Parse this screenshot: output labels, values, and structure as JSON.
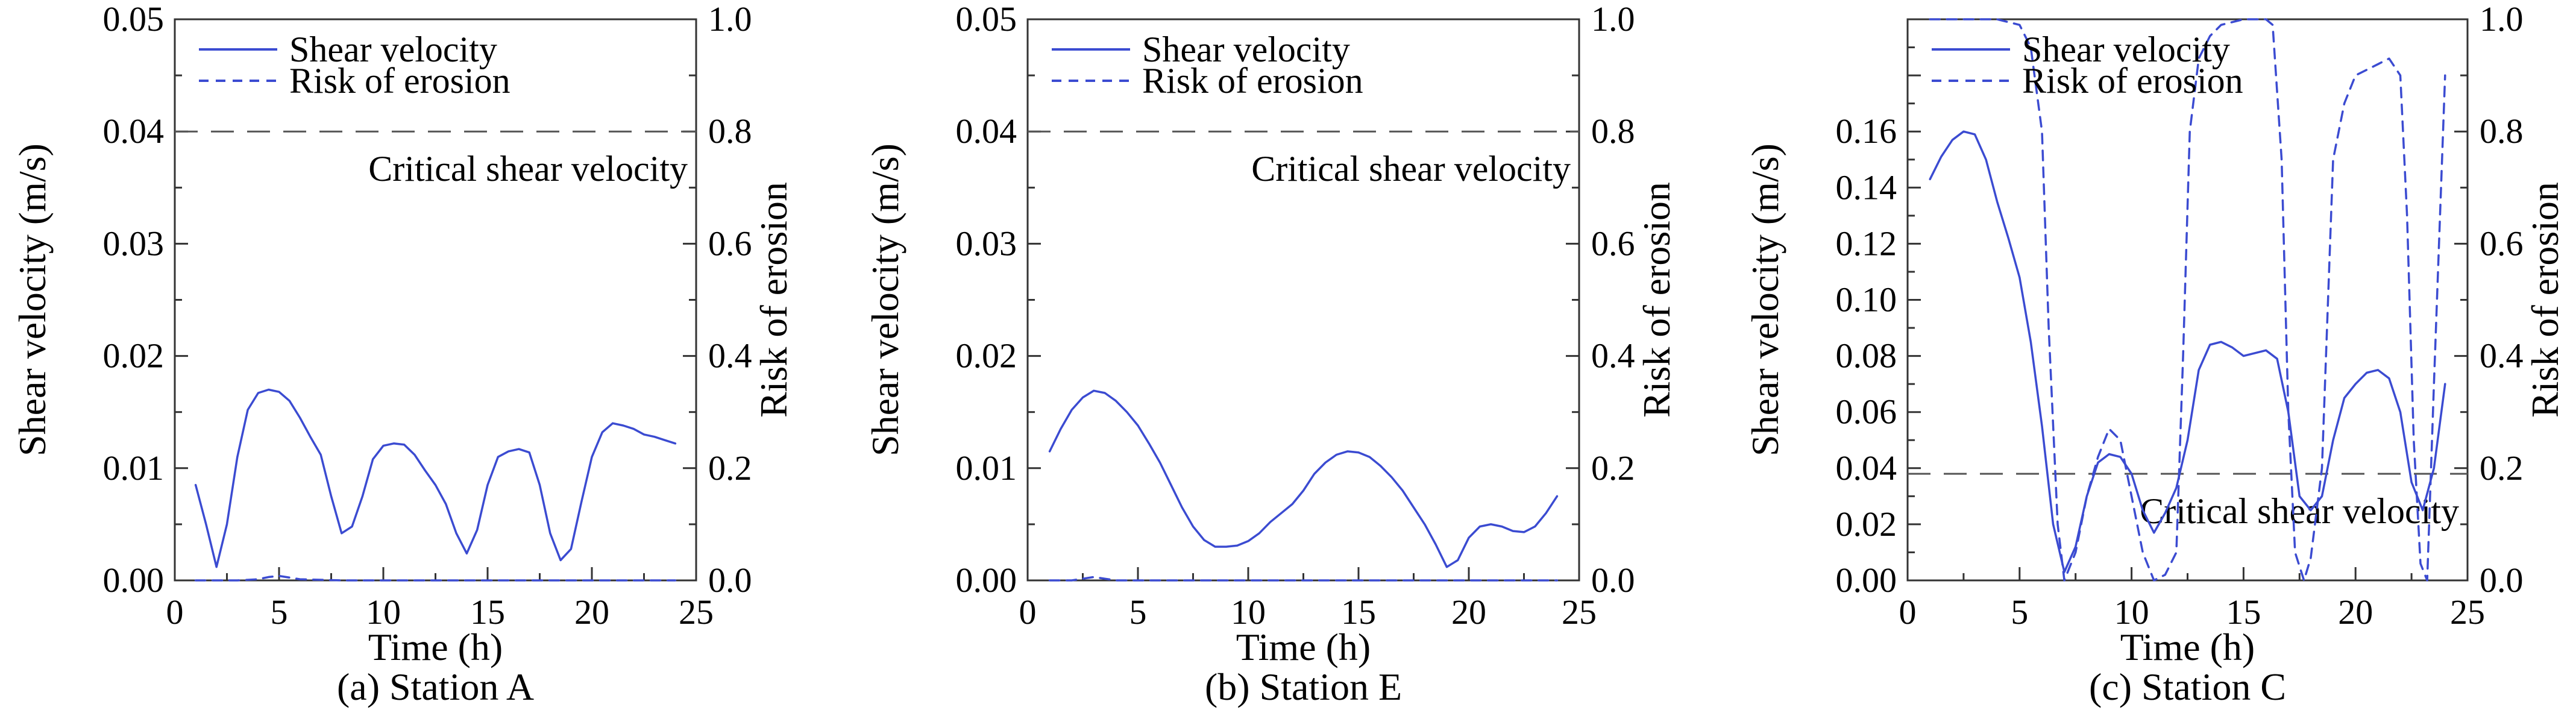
{
  "colors": {
    "series": "#3b4bd1",
    "critical": "#555555",
    "axis": "#333333"
  },
  "chart_data": [
    {
      "type": "line",
      "caption": "(a) Station A",
      "xlabel": "Time (h)",
      "ylabel": "Shear velocity (m/s)",
      "y2label": "Risk of erosion",
      "xlim": [
        0,
        25
      ],
      "ylim": [
        0,
        0.05
      ],
      "y2lim": [
        0,
        1.0
      ],
      "xticks": [
        0,
        5,
        10,
        15,
        20,
        25
      ],
      "xtick_labels": [
        "0",
        "5",
        "10",
        "15",
        "20",
        "25"
      ],
      "yticks": [
        0,
        0.01,
        0.02,
        0.03,
        0.04,
        0.05
      ],
      "ytick_labels": [
        "0.00",
        "0.01",
        "0.02",
        "0.03",
        "0.04",
        "0.05"
      ],
      "y2ticks": [
        0,
        0.2,
        0.4,
        0.6,
        0.8,
        1.0
      ],
      "y2tick_labels": [
        "0.0",
        "0.2",
        "0.4",
        "0.6",
        "0.8",
        "1.0"
      ],
      "legend": {
        "position": "top-left",
        "entries": [
          "Shear velocity",
          "Risk of erosion"
        ]
      },
      "critical": {
        "value": 0.04,
        "label": "Critical shear velocity",
        "label_position": "below-right"
      },
      "series": [
        {
          "name": "Shear velocity",
          "axis": "left",
          "style": "solid",
          "x": [
            1,
            1.5,
            2,
            2.5,
            3,
            3.5,
            4,
            4.5,
            5,
            5.5,
            6,
            6.5,
            7,
            7.5,
            8,
            8.5,
            9,
            9.5,
            10,
            10.5,
            11,
            11.5,
            12,
            12.5,
            13,
            13.5,
            14,
            14.5,
            15,
            15.5,
            16,
            16.5,
            17,
            17.5,
            18,
            18.5,
            19,
            19.5,
            20,
            20.5,
            21,
            21.5,
            22,
            22.5,
            23,
            23.5,
            24
          ],
          "y": [
            0.0085,
            0.005,
            0.0012,
            0.005,
            0.011,
            0.0152,
            0.0167,
            0.017,
            0.0168,
            0.016,
            0.0145,
            0.0128,
            0.0112,
            0.0075,
            0.0042,
            0.0048,
            0.0075,
            0.0108,
            0.012,
            0.0122,
            0.0121,
            0.0112,
            0.0098,
            0.0085,
            0.0068,
            0.0042,
            0.0024,
            0.0045,
            0.0085,
            0.011,
            0.0115,
            0.0117,
            0.0114,
            0.0085,
            0.0042,
            0.0018,
            0.0028,
            0.007,
            0.011,
            0.0132,
            0.014,
            0.0138,
            0.0135,
            0.013,
            0.0128,
            0.0125,
            0.0122
          ]
        },
        {
          "name": "Risk of erosion",
          "axis": "right",
          "style": "dashed",
          "x": [
            1,
            3,
            4,
            4.5,
            5,
            5.5,
            6,
            8,
            12,
            16,
            20,
            24
          ],
          "y": [
            0,
            0,
            0.002,
            0.006,
            0.008,
            0.005,
            0.002,
            0,
            0,
            0,
            0,
            0
          ]
        }
      ]
    },
    {
      "type": "line",
      "caption": "(b) Station E",
      "xlabel": "Time (h)",
      "ylabel": "Shear velocity (m/s)",
      "y2label": "Risk of erosion",
      "xlim": [
        0,
        25
      ],
      "ylim": [
        0,
        0.05
      ],
      "y2lim": [
        0,
        1.0
      ],
      "xticks": [
        0,
        5,
        10,
        15,
        20,
        25
      ],
      "xtick_labels": [
        "0",
        "5",
        "10",
        "15",
        "20",
        "25"
      ],
      "yticks": [
        0,
        0.01,
        0.02,
        0.03,
        0.04,
        0.05
      ],
      "ytick_labels": [
        "0.00",
        "0.01",
        "0.02",
        "0.03",
        "0.04",
        "0.05"
      ],
      "y2ticks": [
        0,
        0.2,
        0.4,
        0.6,
        0.8,
        1.0
      ],
      "y2tick_labels": [
        "0.0",
        "0.2",
        "0.4",
        "0.6",
        "0.8",
        "1.0"
      ],
      "legend": {
        "position": "top-left",
        "entries": [
          "Shear velocity",
          "Risk of erosion"
        ]
      },
      "critical": {
        "value": 0.04,
        "label": "Critical shear velocity",
        "label_position": "below-right"
      },
      "series": [
        {
          "name": "Shear velocity",
          "axis": "left",
          "style": "solid",
          "x": [
            1,
            1.5,
            2,
            2.5,
            3,
            3.5,
            4,
            4.5,
            5,
            5.5,
            6,
            6.5,
            7,
            7.5,
            8,
            8.5,
            9,
            9.5,
            10,
            10.5,
            11,
            11.5,
            12,
            12.5,
            13,
            13.5,
            14,
            14.5,
            15,
            15.5,
            16,
            16.5,
            17,
            17.5,
            18,
            18.5,
            19,
            19.5,
            20,
            20.5,
            21,
            21.5,
            22,
            22.5,
            23,
            23.5,
            24
          ],
          "y": [
            0.0115,
            0.0135,
            0.0152,
            0.0163,
            0.0169,
            0.0167,
            0.016,
            0.015,
            0.0138,
            0.0122,
            0.0105,
            0.0085,
            0.0065,
            0.0048,
            0.0036,
            0.003,
            0.003,
            0.0031,
            0.0035,
            0.0042,
            0.0052,
            0.006,
            0.0068,
            0.008,
            0.0095,
            0.0105,
            0.0112,
            0.0115,
            0.0114,
            0.011,
            0.0102,
            0.0092,
            0.008,
            0.0065,
            0.005,
            0.0032,
            0.0012,
            0.0018,
            0.0038,
            0.0048,
            0.005,
            0.0048,
            0.0044,
            0.0043,
            0.0048,
            0.006,
            0.0075
          ]
        },
        {
          "name": "Risk of erosion",
          "axis": "right",
          "style": "dashed",
          "x": [
            1,
            2,
            2.5,
            3,
            3.5,
            4,
            5,
            10,
            15,
            20,
            24
          ],
          "y": [
            0,
            0,
            0.003,
            0.006,
            0.003,
            0,
            0,
            0,
            0,
            0,
            0
          ]
        }
      ]
    },
    {
      "type": "line",
      "caption": "(c) Station C",
      "xlabel": "Time (h)",
      "ylabel": "Shear velocity (m/s)",
      "y2label": "Risk of erosion",
      "xlim": [
        0,
        25
      ],
      "ylim": [
        0,
        0.2
      ],
      "y2lim": [
        0,
        1.0
      ],
      "xticks": [
        0,
        5,
        10,
        15,
        20,
        25
      ],
      "xtick_labels": [
        "0",
        "5",
        "10",
        "15",
        "20",
        "25"
      ],
      "yticks": [
        0,
        0.02,
        0.04,
        0.06,
        0.08,
        0.1,
        0.12,
        0.14,
        0.16
      ],
      "ytick_labels": [
        "0.00",
        "0.02",
        "0.04",
        "0.06",
        "0.08",
        "0.10",
        "0.12",
        "0.14",
        "0.16"
      ],
      "y2ticks": [
        0,
        0.2,
        0.4,
        0.6,
        0.8,
        1.0
      ],
      "y2tick_labels": [
        "0.0",
        "0.2",
        "0.4",
        "0.6",
        "0.8",
        "1.0"
      ],
      "legend": {
        "position": "top-left",
        "entries": [
          "Shear velocity",
          "Risk of erosion"
        ]
      },
      "critical": {
        "value": 0.038,
        "label": "Critical shear velocity",
        "label_position": "below-right"
      },
      "series": [
        {
          "name": "Shear velocity",
          "axis": "left",
          "style": "solid",
          "x": [
            1,
            1.5,
            2,
            2.5,
            3,
            3.5,
            4,
            4.5,
            5,
            5.5,
            6,
            6.5,
            7,
            7.5,
            8,
            8.5,
            9,
            9.5,
            10,
            10.5,
            11,
            11.5,
            12,
            12.5,
            13,
            13.5,
            14,
            14.5,
            15,
            15.5,
            16,
            16.5,
            17,
            17.5,
            18,
            18.5,
            19,
            19.5,
            20,
            20.5,
            21,
            21.5,
            22,
            22.5,
            23,
            23.5,
            24
          ],
          "y": [
            0.143,
            0.151,
            0.157,
            0.16,
            0.159,
            0.15,
            0.135,
            0.122,
            0.108,
            0.085,
            0.055,
            0.02,
            0.003,
            0.012,
            0.03,
            0.042,
            0.045,
            0.044,
            0.038,
            0.025,
            0.017,
            0.024,
            0.033,
            0.05,
            0.075,
            0.084,
            0.085,
            0.083,
            0.08,
            0.081,
            0.082,
            0.079,
            0.06,
            0.03,
            0.025,
            0.03,
            0.05,
            0.065,
            0.07,
            0.074,
            0.075,
            0.072,
            0.06,
            0.035,
            0.025,
            0.04,
            0.07
          ]
        },
        {
          "name": "Risk of erosion",
          "axis": "right",
          "style": "dashed",
          "x": [
            1,
            2,
            3,
            4,
            5,
            5.5,
            6,
            6.3,
            6.7,
            7,
            7.5,
            8,
            8.5,
            9,
            9.5,
            10,
            10.5,
            11,
            11.5,
            12,
            12.3,
            12.6,
            13,
            13.5,
            14,
            15,
            16,
            16.3,
            16.7,
            17,
            17.3,
            17.7,
            18,
            18.5,
            19,
            19.5,
            20,
            21,
            21.5,
            22,
            22.3,
            22.6,
            22.9,
            23.2,
            23.5,
            24
          ],
          "y": [
            1.0,
            1.0,
            1.0,
            1.0,
            0.99,
            0.95,
            0.8,
            0.45,
            0.1,
            0.0,
            0.05,
            0.15,
            0.22,
            0.27,
            0.25,
            0.15,
            0.05,
            0.0,
            0.01,
            0.05,
            0.4,
            0.8,
            0.93,
            0.97,
            0.99,
            1.0,
            1.0,
            0.99,
            0.75,
            0.3,
            0.05,
            0.0,
            0.04,
            0.2,
            0.75,
            0.85,
            0.9,
            0.92,
            0.93,
            0.9,
            0.65,
            0.25,
            0.03,
            0.0,
            0.35,
            0.9
          ]
        }
      ]
    }
  ]
}
